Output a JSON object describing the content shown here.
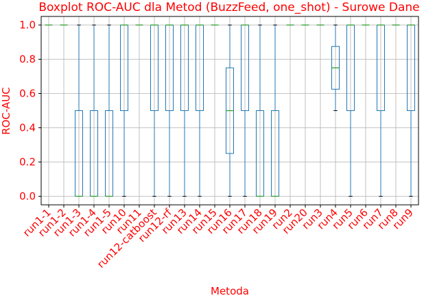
{
  "colors": {
    "text": "#ff0000",
    "box": "#1f77b4",
    "median": "#2ca02c",
    "grid": "#b0b0b0",
    "axis": "#000000",
    "background": "#ffffff"
  },
  "chart_data": {
    "type": "boxplot",
    "title": "Boxplot ROC-AUC dla Metod (BuzzFeed, one_shot) - Surowe Dane",
    "xlabel": "Metoda",
    "ylabel": "ROC-AUC",
    "ylim": [
      -0.05,
      1.05
    ],
    "yticks": [
      "0.0",
      "0.2",
      "0.4",
      "0.6",
      "0.8",
      "1.0"
    ],
    "ytick_values": [
      0.0,
      0.2,
      0.4,
      0.6,
      0.8,
      1.0
    ],
    "grid": true,
    "categories": [
      "run1-1",
      "run1-2",
      "run1-3",
      "run1-4",
      "run1-5",
      "run10",
      "run11",
      "run12-catboost",
      "run12-rf",
      "run13",
      "run14",
      "run15",
      "run16",
      "run17",
      "run18",
      "run19",
      "run2",
      "run20",
      "run3",
      "run4",
      "run5",
      "run6",
      "run7",
      "run8",
      "run9"
    ],
    "boxes": [
      {
        "whislo": 1.0,
        "q1": 1.0,
        "median": 1.0,
        "q3": 1.0,
        "whishi": 1.0
      },
      {
        "whislo": 1.0,
        "q1": 1.0,
        "median": 1.0,
        "q3": 1.0,
        "whishi": 1.0
      },
      {
        "whislo": 0.0,
        "q1": 0.0,
        "median": 0.0,
        "q3": 0.5,
        "whishi": 1.0
      },
      {
        "whislo": 0.0,
        "q1": 0.0,
        "median": 0.0,
        "q3": 0.5,
        "whishi": 1.0
      },
      {
        "whislo": 0.0,
        "q1": 0.0,
        "median": 0.0,
        "q3": 0.5,
        "whishi": 1.0
      },
      {
        "whislo": 0.0,
        "q1": 0.5,
        "median": 1.0,
        "q3": 1.0,
        "whishi": 1.0
      },
      {
        "whislo": 1.0,
        "q1": 1.0,
        "median": 1.0,
        "q3": 1.0,
        "whishi": 1.0
      },
      {
        "whislo": 0.0,
        "q1": 0.5,
        "median": 1.0,
        "q3": 1.0,
        "whishi": 1.0
      },
      {
        "whislo": 0.0,
        "q1": 0.5,
        "median": 1.0,
        "q3": 1.0,
        "whishi": 1.0
      },
      {
        "whislo": 0.0,
        "q1": 0.5,
        "median": 1.0,
        "q3": 1.0,
        "whishi": 1.0
      },
      {
        "whislo": 0.0,
        "q1": 0.5,
        "median": 1.0,
        "q3": 1.0,
        "whishi": 1.0
      },
      {
        "whislo": 1.0,
        "q1": 1.0,
        "median": 1.0,
        "q3": 1.0,
        "whishi": 1.0
      },
      {
        "whislo": 0.0,
        "q1": 0.25,
        "median": 0.5,
        "q3": 0.75,
        "whishi": 1.0
      },
      {
        "whislo": 0.0,
        "q1": 0.5,
        "median": 1.0,
        "q3": 1.0,
        "whishi": 1.0
      },
      {
        "whislo": 0.0,
        "q1": 0.0,
        "median": 0.0,
        "q3": 0.5,
        "whishi": 1.0
      },
      {
        "whislo": 0.0,
        "q1": 0.0,
        "median": 0.0,
        "q3": 0.5,
        "whishi": 1.0
      },
      {
        "whislo": 1.0,
        "q1": 1.0,
        "median": 1.0,
        "q3": 1.0,
        "whishi": 1.0
      },
      {
        "whislo": 1.0,
        "q1": 1.0,
        "median": 1.0,
        "q3": 1.0,
        "whishi": 1.0
      },
      {
        "whislo": 1.0,
        "q1": 1.0,
        "median": 1.0,
        "q3": 1.0,
        "whishi": 1.0
      },
      {
        "whislo": 0.5,
        "q1": 0.625,
        "median": 0.75,
        "q3": 0.875,
        "whishi": 1.0
      },
      {
        "whislo": 0.0,
        "q1": 0.5,
        "median": 1.0,
        "q3": 1.0,
        "whishi": 1.0
      },
      {
        "whislo": 1.0,
        "q1": 1.0,
        "median": 1.0,
        "q3": 1.0,
        "whishi": 1.0
      },
      {
        "whislo": 0.0,
        "q1": 0.5,
        "median": 1.0,
        "q3": 1.0,
        "whishi": 1.0
      },
      {
        "whislo": 1.0,
        "q1": 1.0,
        "median": 1.0,
        "q3": 1.0,
        "whishi": 1.0
      },
      {
        "whislo": 0.0,
        "q1": 0.5,
        "median": 1.0,
        "q3": 1.0,
        "whishi": 1.0
      }
    ]
  }
}
